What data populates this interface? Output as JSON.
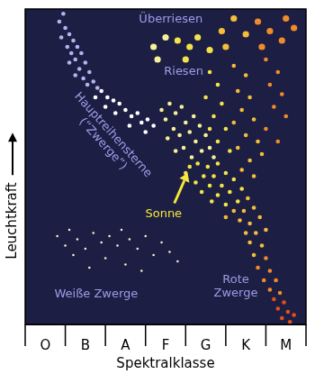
{
  "chart_data": {
    "type": "scatter",
    "x_label": "Spektralklasse",
    "y_label": "Leuchtkraft",
    "xlim": [
      0,
      7
    ],
    "xticks": [
      {
        "value": 0.5,
        "label": "O"
      },
      {
        "value": 1.5,
        "label": "B"
      },
      {
        "value": 2.5,
        "label": "A"
      },
      {
        "value": 3.5,
        "label": "F"
      },
      {
        "value": 4.5,
        "label": "G"
      },
      {
        "value": 5.5,
        "label": "K"
      },
      {
        "value": 6.5,
        "label": "M"
      }
    ],
    "ylim": [
      0,
      100
    ],
    "tick_labels": "x",
    "grid": false,
    "annotations": [
      {
        "text": "Überriesen",
        "color": "#9d9de6"
      },
      {
        "text": "Riesen",
        "color": "#9d9de6"
      },
      {
        "text": [
          "Hauptreihensterne",
          "(“Zwerge”)"
        ],
        "color": "#9d9de6"
      },
      {
        "text": "Sonne",
        "color": "#f5e83c"
      },
      {
        "text": [
          "Rote",
          "Zwerge"
        ],
        "color": "#9d9de6"
      },
      {
        "text": "Weiße Zwerge",
        "color": "#9d9de6"
      }
    ],
    "series": [
      {
        "color": "#b0b4f0",
        "marker": "circle",
        "x": [
          0.95,
          0.85,
          1.0,
          1.1,
          0.9,
          1.2,
          1.05,
          1.3,
          1.15,
          1.4,
          1.25,
          1.5,
          1.1,
          1.35,
          1.6,
          1.45,
          1.7,
          1.55,
          1.8,
          1.25
        ],
        "y": [
          98.5,
          96,
          94,
          92,
          91,
          90,
          88,
          88,
          86,
          86,
          84,
          83,
          83,
          81,
          80,
          78,
          77,
          76,
          75,
          79
        ]
      },
      {
        "color": "#ffffff",
        "marker": "circle",
        "x": [
          1.9,
          2.05,
          1.75,
          2.2,
          2.0,
          2.35,
          2.5,
          2.25,
          2.65,
          2.8,
          2.9,
          3.05,
          3.2,
          2.6,
          3.0
        ],
        "y": [
          74,
          72,
          72,
          71,
          69,
          70,
          68,
          67,
          66,
          67,
          64,
          65,
          63,
          63,
          61
        ]
      },
      {
        "color": "#f0f0d0",
        "marker": "dot",
        "x": [
          0.8,
          1.0,
          1.3,
          1.2,
          1.5,
          1.7,
          1.9,
          2.1,
          2.3,
          2.0,
          2.6,
          2.8,
          2.5,
          3.0,
          3.2,
          3.4,
          3.6,
          1.6,
          2.9,
          3.8,
          1.1,
          2.4
        ],
        "y": [
          28,
          25,
          27,
          22,
          24,
          29,
          26,
          28,
          25,
          21,
          27,
          24,
          19,
          28,
          22,
          26,
          23,
          18,
          17,
          20,
          30,
          30
        ]
      },
      {
        "color": "#f7f09a",
        "marker": "circle",
        "x": [
          3.4,
          3.6,
          3.5,
          3.75,
          3.9,
          3.7,
          4.0,
          4.2,
          3.85,
          4.1,
          4.35,
          4.5,
          3.55,
          4.25,
          4.6,
          3.95,
          4.4,
          4.15,
          4.7,
          3.75
        ],
        "y": [
          68,
          70,
          65,
          67,
          69,
          62,
          64,
          66,
          60,
          61,
          63,
          60,
          59,
          58,
          56,
          56,
          55,
          53,
          53,
          55
        ]
      },
      {
        "color": "#f3e34a",
        "marker": "circle",
        "x": [
          4.1,
          4.3,
          4.55,
          4.8,
          4.0,
          4.45,
          4.7,
          5.0,
          4.25,
          4.6,
          4.9,
          5.2,
          4.4,
          4.8,
          5.1,
          5.4,
          4.65,
          5.0,
          5.3
        ],
        "y": [
          50,
          51,
          50,
          51,
          48,
          47,
          47,
          48,
          45,
          44,
          44,
          46,
          42,
          41,
          42,
          43,
          39,
          38,
          39
        ]
      },
      {
        "color": "#f4bd3a",
        "marker": "circle",
        "x": [
          5.55,
          5.2,
          5.45,
          5.7,
          5.0,
          5.35,
          5.6,
          5.85,
          5.5,
          5.75,
          6.0,
          5.6,
          5.9,
          5.7
        ],
        "y": [
          40,
          36,
          36,
          37,
          34,
          33,
          32,
          34,
          29,
          29,
          30,
          26,
          25,
          22
        ]
      },
      {
        "color": "#ef8c2a",
        "marker": "circle",
        "x": [
          6.0,
          5.8,
          6.1,
          5.95,
          6.25,
          6.1,
          6.35
        ],
        "y": [
          21,
          18,
          17,
          14,
          14,
          11,
          10
        ]
      },
      {
        "color": "#e2501e",
        "marker": "circle",
        "x": [
          6.2,
          6.45,
          6.3,
          6.55,
          6.7,
          6.4,
          6.6
        ],
        "y": [
          8,
          7,
          5,
          4,
          3,
          2,
          0.8
        ]
      },
      {
        "color": "#f7f09a",
        "marker": "disc",
        "x": [
          3.2,
          3.5,
          3.3
        ],
        "y": [
          88,
          91,
          84
        ]
      },
      {
        "color": "#f3e34a",
        "marker": "disc",
        "x": [
          3.8,
          4.1,
          4.3,
          4.0,
          4.6
        ],
        "y": [
          90,
          88,
          91,
          84,
          87
        ]
      },
      {
        "color": "#f4bd3a",
        "marker": "disc",
        "x": [
          4.9,
          5.2,
          5.0,
          5.5
        ],
        "y": [
          93,
          97,
          88,
          92
        ]
      },
      {
        "color": "#ef8c2a",
        "marker": "disc",
        "x": [
          5.8,
          6.1,
          6.5,
          5.9,
          6.4,
          6.7
        ],
        "y": [
          96,
          93,
          97,
          88,
          90,
          94
        ]
      },
      {
        "color": "#f3e34a",
        "marker": "circle",
        "x": [
          4.6,
          4.8,
          4.5,
          4.9,
          4.7,
          5.0,
          4.8,
          5.1,
          4.6
        ],
        "y": [
          80,
          76,
          72,
          70,
          66,
          62,
          58,
          55,
          62
        ]
      },
      {
        "color": "#f4bd3a",
        "marker": "circle",
        "x": [
          5.2,
          5.5,
          5.3,
          5.6,
          5.4,
          5.2,
          5.7,
          5.5,
          5.3,
          5.8,
          5.6,
          5.9,
          5.4,
          5.7
        ],
        "y": [
          82,
          79,
          74,
          72,
          68,
          64,
          65,
          60,
          56,
          58,
          52,
          54,
          49,
          47
        ]
      },
      {
        "color": "#ef8c2a",
        "marker": "circle",
        "x": [
          6.0,
          6.3,
          6.1,
          6.4,
          6.2,
          6.5,
          6.0,
          6.3
        ],
        "y": [
          84,
          80,
          76,
          73,
          69,
          66,
          62,
          58
        ]
      }
    ]
  }
}
